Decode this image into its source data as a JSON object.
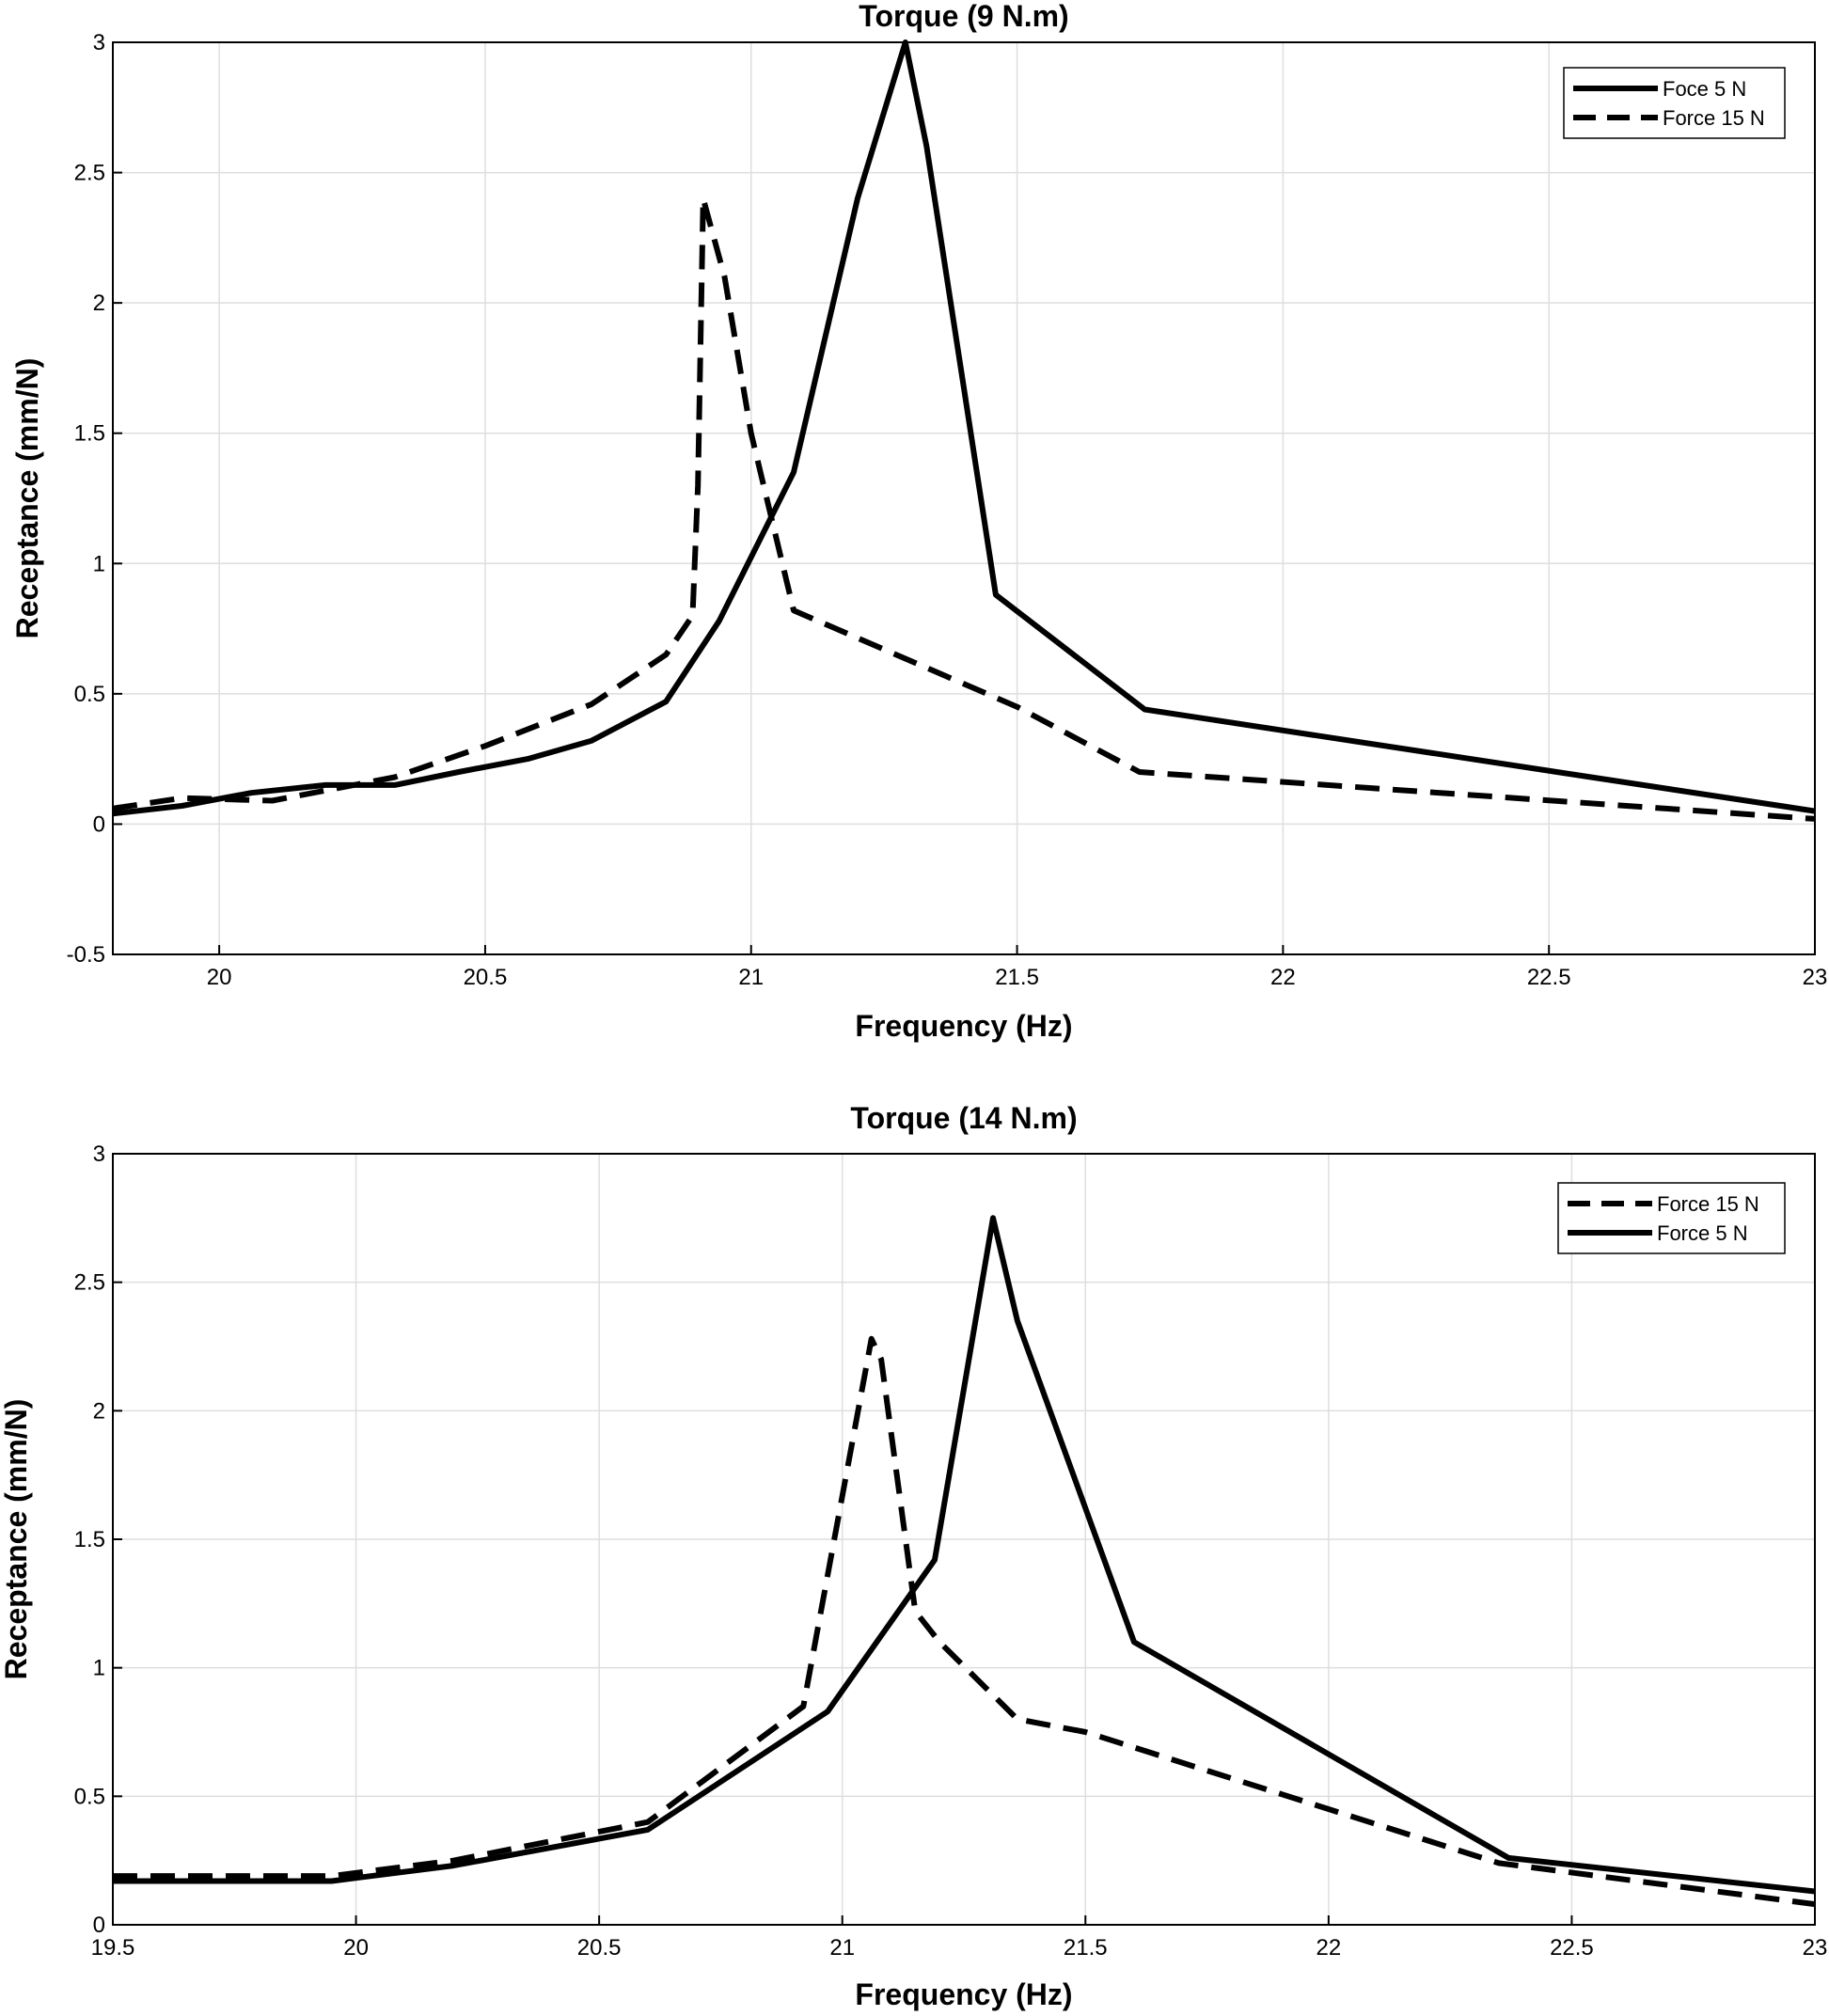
{
  "chart_data": [
    {
      "type": "line",
      "title": "Torque (9 N.m)",
      "xlabel": "Frequency (Hz)",
      "ylabel": "Receptance (mm/N)",
      "xlim": [
        19.8,
        23
      ],
      "ylim": [
        -0.5,
        3
      ],
      "xticks": [
        20,
        20.5,
        21,
        21.5,
        22,
        22.5,
        23
      ],
      "xtick_labels": [
        "20",
        "20.5",
        "21",
        "21.5",
        "22",
        "22.5",
        "23"
      ],
      "yticks": [
        -0.5,
        0,
        0.5,
        1,
        1.5,
        2,
        2.5,
        3
      ],
      "ytick_labels": [
        "-0.5",
        "0",
        "0.5",
        "1",
        "1.5",
        "2",
        "2.5",
        "3"
      ],
      "grid": true,
      "legend_position": "top-right",
      "series": [
        {
          "name": "Foce 5 N",
          "style": "solid",
          "x": [
            19.8,
            19.93,
            20.06,
            20.2,
            20.33,
            20.45,
            20.58,
            20.7,
            20.84,
            20.94,
            21.08,
            21.2,
            21.29,
            21.33,
            21.46,
            21.74,
            23.0
          ],
          "y": [
            0.04,
            0.07,
            0.12,
            0.15,
            0.15,
            0.2,
            0.25,
            0.32,
            0.47,
            0.78,
            1.35,
            2.4,
            3.0,
            2.6,
            0.88,
            0.44,
            0.05
          ]
        },
        {
          "name": "Force 15 N",
          "style": "dashed",
          "x": [
            19.8,
            19.93,
            20.1,
            20.33,
            20.5,
            20.7,
            20.84,
            20.89,
            20.9,
            20.91,
            20.95,
            21.0,
            21.08,
            21.5,
            21.73,
            23.0
          ],
          "y": [
            0.06,
            0.1,
            0.09,
            0.18,
            0.3,
            0.46,
            0.65,
            0.8,
            1.3,
            2.4,
            2.1,
            1.5,
            0.82,
            0.45,
            0.2,
            0.02
          ]
        }
      ]
    },
    {
      "type": "line",
      "title": "Torque (14 N.m)",
      "xlabel": "Frequency (Hz)",
      "ylabel": "Receptance (mm/N)",
      "xlim": [
        19.5,
        23
      ],
      "ylim": [
        0,
        3
      ],
      "xticks": [
        19.5,
        20,
        20.5,
        21,
        21.5,
        22,
        22.5,
        23
      ],
      "xtick_labels": [
        "19.5",
        "20",
        "20.5",
        "21",
        "21.5",
        "22",
        "22.5",
        "23"
      ],
      "yticks": [
        0,
        0.5,
        1,
        1.5,
        2,
        2.5,
        3
      ],
      "ytick_labels": [
        "0",
        "0.5",
        "1",
        "1.5",
        "2",
        "2.5",
        "3"
      ],
      "grid": true,
      "legend_position": "top-right",
      "series": [
        {
          "name": "Force 15 N",
          "style": "dashed",
          "x": [
            19.5,
            19.95,
            20.2,
            20.6,
            20.92,
            21.06,
            21.08,
            21.15,
            21.2,
            21.36,
            21.5,
            22.0,
            22.35,
            23.0
          ],
          "y": [
            0.19,
            0.19,
            0.25,
            0.4,
            0.85,
            2.28,
            2.2,
            1.22,
            1.1,
            0.8,
            0.75,
            0.45,
            0.24,
            0.08
          ]
        },
        {
          "name": "Force 5 N",
          "style": "solid",
          "x": [
            19.5,
            19.95,
            20.2,
            20.6,
            20.97,
            21.19,
            21.31,
            21.36,
            21.6,
            22.37,
            23.0
          ],
          "y": [
            0.17,
            0.17,
            0.23,
            0.37,
            0.83,
            1.42,
            2.75,
            2.35,
            1.1,
            0.26,
            0.13
          ]
        }
      ]
    }
  ]
}
